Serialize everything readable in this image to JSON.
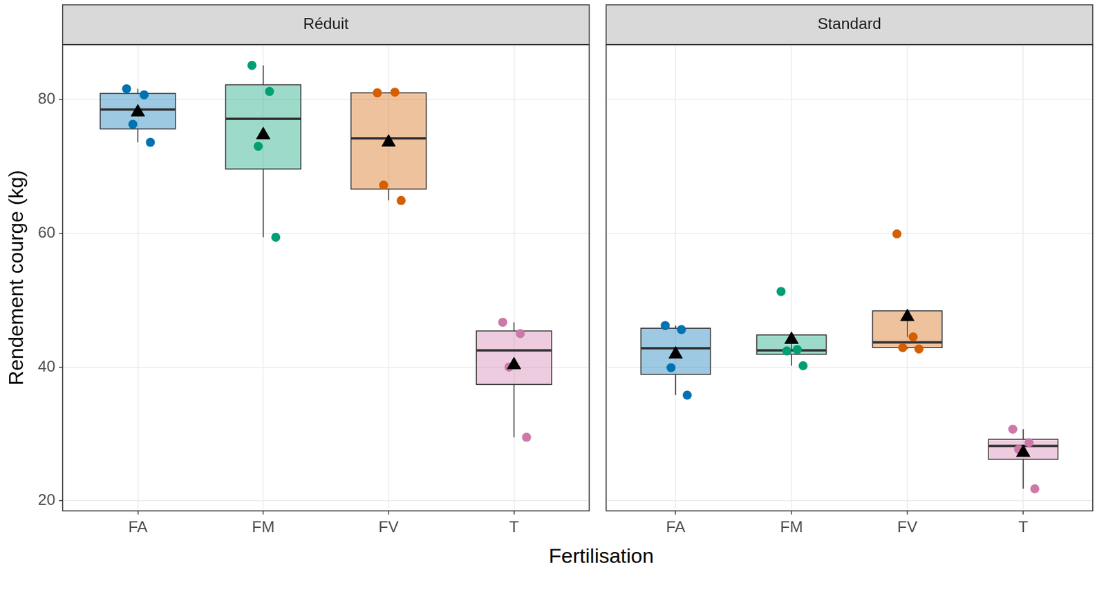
{
  "chart_data": [
    {
      "type": "boxplot",
      "title": "Réduit",
      "x_label": "Fertilisation",
      "y_label": "Rendement courge (kg)",
      "categories": [
        "FA",
        "FM",
        "FV",
        "T"
      ],
      "colors": [
        "#0072B2",
        "#009E73",
        "#D55E00",
        "#CC79A7"
      ],
      "boxes": [
        {
          "q1": 75.6,
          "median": 78.5,
          "q3": 80.9,
          "whisker_low": 73.6,
          "whisker_high": 81.6,
          "mean": 78.1,
          "points": [
            81.6,
            80.7,
            76.3,
            73.6
          ]
        },
        {
          "q1": 69.6,
          "median": 77.1,
          "q3": 82.2,
          "whisker_low": 59.4,
          "whisker_high": 85.1,
          "mean": 74.7,
          "points": [
            85.1,
            81.2,
            73.0,
            59.4
          ]
        },
        {
          "q1": 66.6,
          "median": 74.2,
          "q3": 81.0,
          "whisker_low": 64.9,
          "whisker_high": 81.1,
          "mean": 73.6,
          "points": [
            81.0,
            81.1,
            67.2,
            64.9
          ]
        },
        {
          "q1": 37.4,
          "median": 42.5,
          "q3": 45.4,
          "whisker_low": 29.5,
          "whisker_high": 46.7,
          "mean": 40.3,
          "points": [
            46.7,
            45.0,
            40.0,
            29.5
          ]
        }
      ],
      "ylim": [
        18.5,
        88.2
      ],
      "yticks": [
        20,
        40,
        60,
        80
      ],
      "grid": true
    },
    {
      "type": "boxplot",
      "title": "Standard",
      "categories": [
        "FA",
        "FM",
        "FV",
        "T"
      ],
      "colors": [
        "#0072B2",
        "#009E73",
        "#D55E00",
        "#CC79A7"
      ],
      "boxes": [
        {
          "q1": 38.9,
          "median": 42.8,
          "q3": 45.8,
          "whisker_low": 35.8,
          "whisker_high": 46.2,
          "mean": 41.9,
          "points": [
            46.2,
            45.6,
            39.9,
            35.8
          ]
        },
        {
          "q1": 41.9,
          "median": 42.5,
          "q3": 44.8,
          "whisker_low": 40.2,
          "whisker_high": 42.6,
          "mean": 44.1,
          "points": [
            51.3,
            42.6,
            42.4,
            40.2
          ]
        },
        {
          "q1": 42.9,
          "median": 43.7,
          "q3": 48.4,
          "whisker_low": 42.7,
          "whisker_high": 44.5,
          "mean": 47.5,
          "points": [
            59.9,
            44.5,
            42.9,
            42.7
          ]
        },
        {
          "q1": 26.2,
          "median": 28.2,
          "q3": 29.2,
          "whisker_low": 21.8,
          "whisker_high": 30.7,
          "mean": 27.2,
          "points": [
            30.7,
            28.7,
            27.7,
            21.8
          ]
        }
      ],
      "ylim": [
        18.5,
        88.2
      ],
      "yticks": [
        20,
        40,
        60,
        80
      ],
      "grid": true,
      "tick_labels": "x"
    }
  ]
}
